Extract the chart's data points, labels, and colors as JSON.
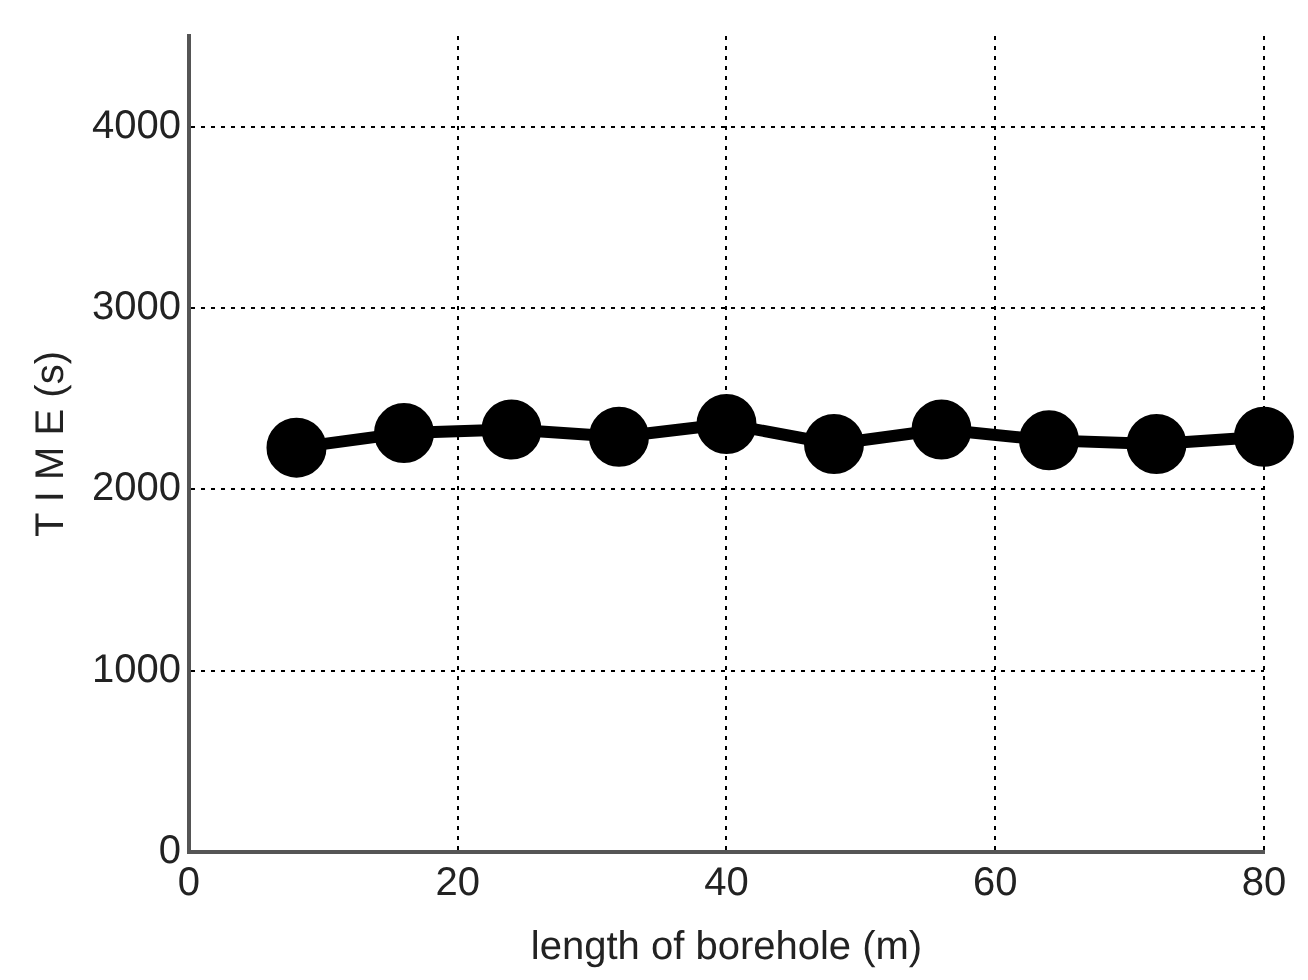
{
  "chart_data": {
    "type": "line",
    "xlabel": "length of borehole (m)",
    "ylabel": "T I M E (s)",
    "x": [
      8,
      16,
      24,
      32,
      40,
      48,
      56,
      64,
      72,
      80
    ],
    "series": [
      {
        "color": "#000000",
        "values": [
          2230,
          2310,
          2330,
          2290,
          2360,
          2250,
          2330,
          2270,
          2250,
          2290
        ]
      }
    ],
    "xlim": [
      0,
      80
    ],
    "xticks": [
      0,
      20,
      40,
      60,
      80
    ],
    "ylim": [
      0,
      4500
    ],
    "yticks": [
      0,
      1000,
      2000,
      3000,
      4000
    ],
    "grid": true,
    "legend": false,
    "marker": "circle",
    "line_style": "solid"
  }
}
